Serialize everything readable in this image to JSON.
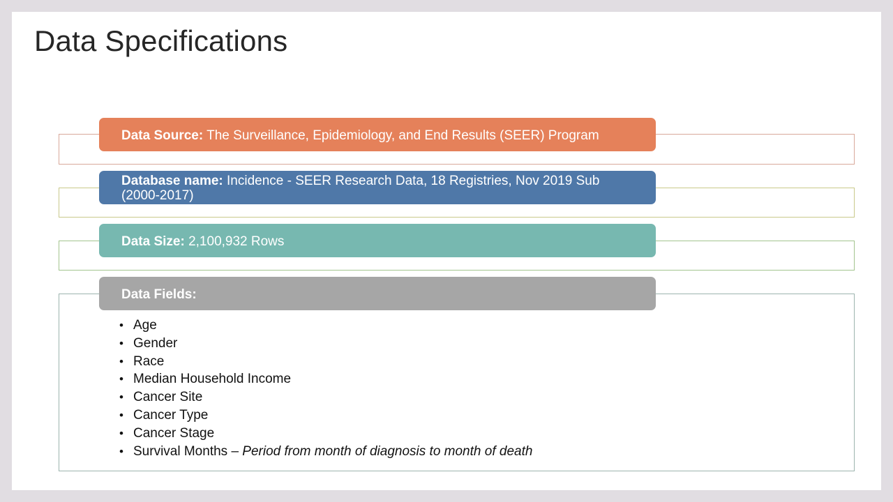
{
  "slide": {
    "title": "Data Specifications"
  },
  "sections": {
    "source": {
      "label": "Data Source:",
      "value": " The Surveillance, Epidemiology,  and End Results (SEER) Program",
      "color": "#e5815a"
    },
    "database": {
      "label": "Database name:",
      "value": " Incidence - SEER Research Data, 18 Registries, Nov 2019 Sub (2000-2017)",
      "color": "#4f78a8"
    },
    "size": {
      "label": "Data Size:",
      "value": " 2,100,932 Rows",
      "color": "#77b8b0"
    },
    "fields": {
      "label": "Data Fields:",
      "color": "#a6a6a6"
    }
  },
  "field_list": [
    {
      "name": "Age",
      "note": ""
    },
    {
      "name": "Gender",
      "note": ""
    },
    {
      "name": "Race",
      "note": ""
    },
    {
      "name": "Median Household  Income",
      "note": ""
    },
    {
      "name": "Cancer Site",
      "note": ""
    },
    {
      "name": "Cancer Type",
      "note": ""
    },
    {
      "name": "Cancer Stage",
      "note": ""
    },
    {
      "name": "Survival Months",
      "separator": " – ",
      "note": "Period from month of diagnosis to month of death"
    }
  ],
  "bullet_char": "•"
}
